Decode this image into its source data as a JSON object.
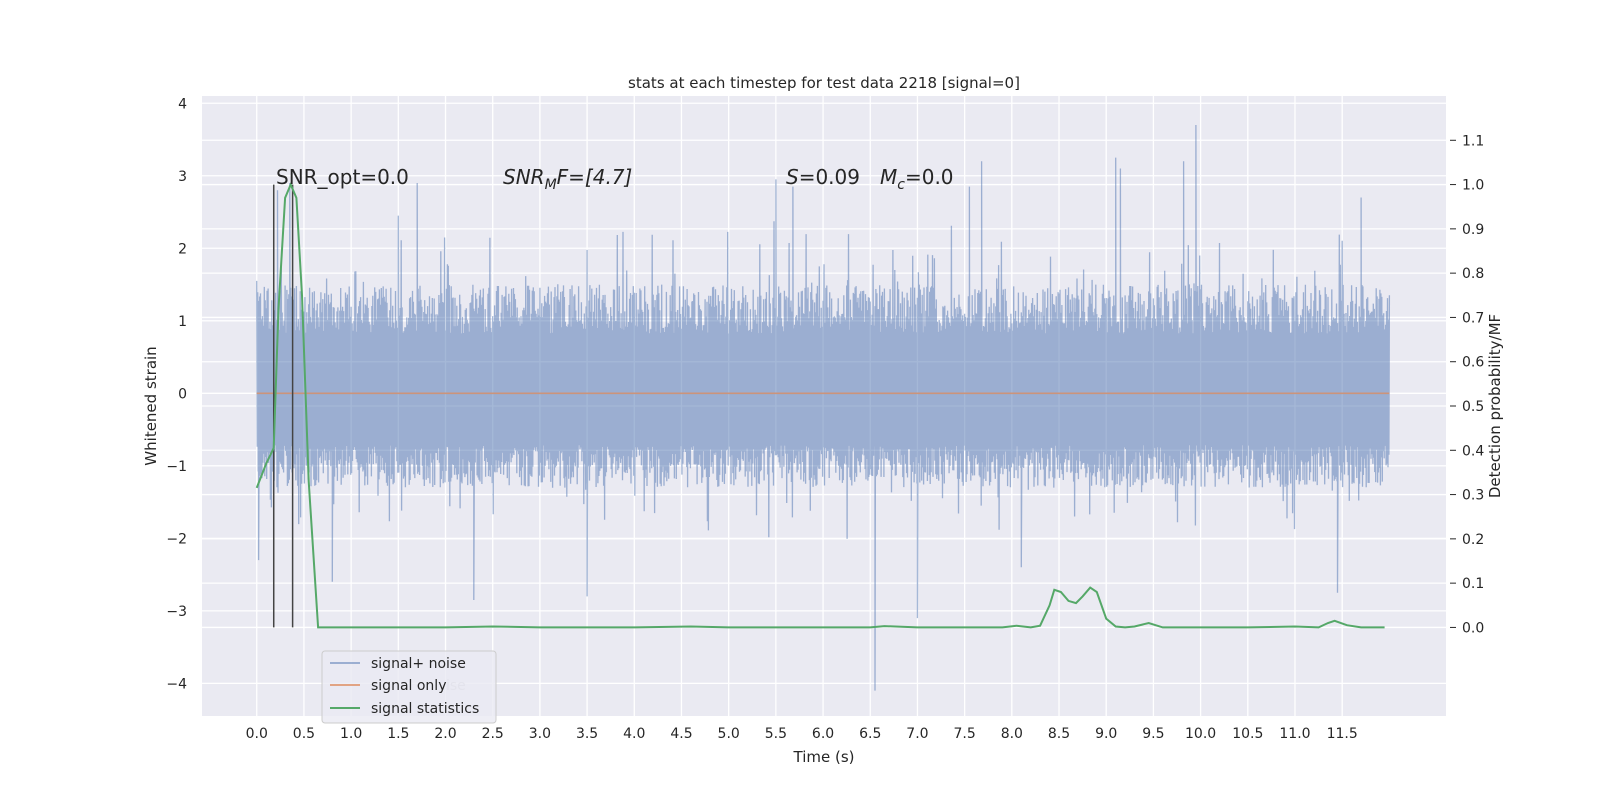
{
  "chart_data": {
    "type": "line",
    "title": "stats at each timestep for test data 2218 [signal=0]",
    "xlabel": "Time (s)",
    "ylabel": "Whitened strain",
    "y2label": "Detection probability/MF",
    "xlim": [
      -0.58,
      12.6
    ],
    "ylim": [
      -4.45,
      4.1
    ],
    "y2lim": [
      -0.2,
      1.2
    ],
    "x_ticks": [
      0.0,
      0.5,
      1.0,
      1.5,
      2.0,
      2.5,
      3.0,
      3.5,
      4.0,
      4.5,
      5.0,
      5.5,
      6.0,
      6.5,
      7.0,
      7.5,
      8.0,
      8.5,
      9.0,
      9.5,
      10.0,
      10.5,
      11.0,
      11.5
    ],
    "x_tick_labels": [
      "0.0",
      "0.5",
      "1.0",
      "1.5",
      "2.0",
      "2.5",
      "3.0",
      "3.5",
      "4.0",
      "4.5",
      "5.0",
      "5.5",
      "6.0",
      "6.5",
      "7.0",
      "7.5",
      "8.0",
      "8.5",
      "9.0",
      "9.5",
      "10.0",
      "10.5",
      "11.0",
      "11.5"
    ],
    "y_ticks": [
      -4,
      -3,
      -2,
      -1,
      0,
      1,
      2,
      3,
      4
    ],
    "y_tick_labels": [
      "−4",
      "−3",
      "−2",
      "−1",
      "0",
      "1",
      "2",
      "3",
      "4"
    ],
    "y2_ticks": [
      0.0,
      0.1,
      0.2,
      0.3,
      0.4,
      0.5,
      0.6,
      0.7,
      0.8,
      0.9,
      1.0,
      1.1
    ],
    "y2_tick_labels": [
      "0.0",
      "0.1",
      "0.2",
      "0.3",
      "0.4",
      "0.5",
      "0.6",
      "0.7",
      "0.8",
      "0.9",
      "1.0",
      "1.1"
    ],
    "grid": true,
    "legend_position": "lower-left",
    "legend": [
      "signal+ noise",
      "signal only",
      "signal statistics"
    ],
    "legend_ghost_text": "ise",
    "annotations": {
      "snr_opt": "SNR_opt=0.0",
      "snr_mf_main": "SNR",
      "snr_mf_sub": "M",
      "snr_mf_rest": "F=[4.7]",
      "s_main": "S",
      "s_rest": "=0.09",
      "mc_main": "M",
      "mc_sub": "c",
      "mc_rest": "=0.0"
    },
    "vertical_markers_x": [
      0.18,
      0.38
    ],
    "vertical_markers_y2_top": 1.0,
    "noise_series": {
      "name": "signal+ noise",
      "x_range": [
        0.0,
        12.0
      ],
      "typical_envelope": [
        -1.3,
        1.5
      ],
      "notable_peaks": [
        {
          "x": 0.0,
          "y": 1.55
        },
        {
          "x": 0.22,
          "y": 2.8
        },
        {
          "x": 0.35,
          "y": 2.9
        },
        {
          "x": 1.5,
          "y": 2.45
        },
        {
          "x": 1.7,
          "y": 2.9
        },
        {
          "x": 5.5,
          "y": 2.95
        },
        {
          "x": 5.68,
          "y": 2.85
        },
        {
          "x": 7.55,
          "y": 2.85
        },
        {
          "x": 7.68,
          "y": 3.2
        },
        {
          "x": 9.1,
          "y": 3.25
        },
        {
          "x": 9.15,
          "y": 3.1
        },
        {
          "x": 9.82,
          "y": 3.2
        },
        {
          "x": 9.95,
          "y": 3.7
        },
        {
          "x": 11.7,
          "y": 2.7
        }
      ],
      "notable_troughs": [
        {
          "x": 0.02,
          "y": -2.3
        },
        {
          "x": 0.8,
          "y": -2.6
        },
        {
          "x": 2.3,
          "y": -2.85
        },
        {
          "x": 3.5,
          "y": -2.8
        },
        {
          "x": 6.55,
          "y": -4.1
        },
        {
          "x": 7.0,
          "y": -3.1
        },
        {
          "x": 8.1,
          "y": -2.4
        },
        {
          "x": 11.45,
          "y": -2.75
        }
      ],
      "color": "#4c72b0"
    },
    "signal_only": {
      "name": "signal only",
      "x": [
        0.0,
        12.0
      ],
      "y": [
        0.0,
        0.0
      ],
      "color": "#dd8452"
    },
    "signal_statistics": {
      "name": "signal statistics",
      "color": "#55a868",
      "x": [
        0.0,
        0.1,
        0.18,
        0.23,
        0.3,
        0.36,
        0.42,
        0.48,
        0.55,
        0.65,
        1.0,
        2.0,
        2.5,
        3.0,
        4.0,
        4.6,
        5.0,
        6.0,
        6.5,
        6.65,
        7.0,
        7.5,
        7.9,
        8.05,
        8.2,
        8.3,
        8.4,
        8.45,
        8.52,
        8.6,
        8.68,
        8.75,
        8.83,
        8.9,
        9.0,
        9.1,
        9.2,
        9.3,
        9.45,
        9.6,
        10.0,
        10.5,
        11.0,
        11.25,
        11.35,
        11.42,
        11.55,
        11.7,
        11.9,
        11.95
      ],
      "y": [
        0.315,
        0.37,
        0.405,
        0.72,
        0.97,
        1.0,
        0.97,
        0.75,
        0.33,
        0.0,
        0.0,
        0.0,
        0.002,
        0.0,
        0.0,
        0.002,
        0.0,
        0.0,
        0.0,
        0.003,
        0.0,
        0.0,
        0.0,
        0.004,
        0.0,
        0.004,
        0.05,
        0.085,
        0.08,
        0.06,
        0.055,
        0.07,
        0.09,
        0.08,
        0.02,
        0.002,
        0.0,
        0.002,
        0.01,
        0.0,
        0.0,
        0.0,
        0.002,
        0.0,
        0.01,
        0.015,
        0.005,
        0.0,
        0.0,
        0.0
      ]
    }
  }
}
